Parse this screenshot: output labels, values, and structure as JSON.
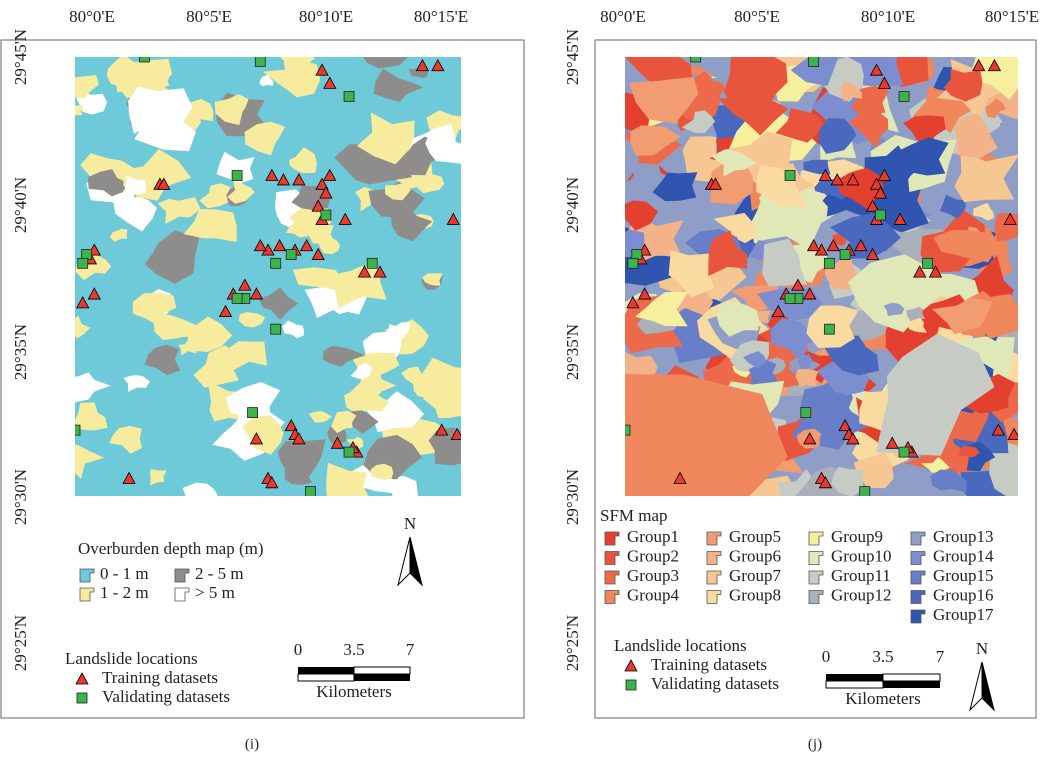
{
  "panels": [
    {
      "caption": "(i)",
      "lon_labels": [
        "80°0'E",
        "80°5'E",
        "80°10'E",
        "80°15'E"
      ],
      "lat_labels": [
        "29°45'N",
        "29°40'N",
        "29°35'N",
        "29°30'N",
        "29°25'N"
      ],
      "legend": {
        "title": "Overburden depth map (m)",
        "items": [
          {
            "label": "0 - 1 m",
            "color": "#6ecad8"
          },
          {
            "label": "2 - 5 m",
            "color": "#8f8c8c"
          },
          {
            "label": "1 - 2 m",
            "color": "#f7eb9e"
          },
          {
            "label": "> 5 m",
            "color": "#ffffff"
          }
        ]
      },
      "north": "N",
      "landslide": {
        "title": "Landslide locations",
        "training": "Training datasets",
        "validating": "Validating datasets"
      },
      "scale": {
        "ticks": [
          "0",
          "3.5",
          "7"
        ],
        "unit": "Kilometers"
      }
    },
    {
      "caption": "(j)",
      "lon_labels": [
        "80°0'E",
        "80°5'E",
        "80°10'E",
        "80°15'E"
      ],
      "lat_labels": [
        "29°45'N",
        "29°40'N",
        "29°35'N",
        "29°30'N",
        "29°25'N"
      ],
      "legend": {
        "title": "SFM map",
        "items": [
          {
            "label": "Group1",
            "color": "#e3402f"
          },
          {
            "label": "Group2",
            "color": "#e8553c"
          },
          {
            "label": "Group3",
            "color": "#ec6a4a"
          },
          {
            "label": "Group4",
            "color": "#ef865c"
          },
          {
            "label": "Group5",
            "color": "#f29c72"
          },
          {
            "label": "Group6",
            "color": "#f3b287"
          },
          {
            "label": "Group7",
            "color": "#f6c792"
          },
          {
            "label": "Group8",
            "color": "#f9dba1"
          },
          {
            "label": "Group9",
            "color": "#f6ef9e"
          },
          {
            "label": "Group10",
            "color": "#e1e8b8"
          },
          {
            "label": "Group11",
            "color": "#c6ccc4"
          },
          {
            "label": "Group12",
            "color": "#a9b0ba"
          },
          {
            "label": "Group13",
            "color": "#8f9ec6"
          },
          {
            "label": "Group14",
            "color": "#7c8ed0"
          },
          {
            "label": "Group15",
            "color": "#687ec8"
          },
          {
            "label": "Group16",
            "color": "#4a68be"
          },
          {
            "label": "Group17",
            "color": "#2f55b0"
          }
        ]
      },
      "north": "N",
      "landslide": {
        "title": "Landslide locations",
        "training": "Training datasets",
        "validating": "Validating datasets"
      },
      "scale": {
        "ticks": [
          "0",
          "3.5",
          "7"
        ],
        "unit": "Kilometers"
      }
    }
  ]
}
